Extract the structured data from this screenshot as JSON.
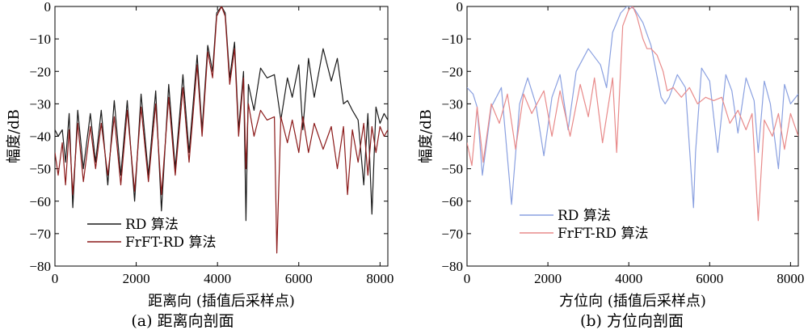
{
  "chart_data": [
    {
      "type": "line",
      "panel": "a",
      "caption": "(a) 距离向剖面",
      "xlabel": "距离向 (插值后采样点)",
      "ylabel": "幅度/dB",
      "xlim": [
        0,
        8192
      ],
      "ylim": [
        -80,
        0
      ],
      "xticks": [
        0,
        2000,
        4000,
        6000,
        8000
      ],
      "yticks": [
        0,
        -10,
        -20,
        -30,
        -40,
        -50,
        -60,
        -70,
        -80
      ],
      "legend_position": "bottom-left",
      "series": [
        {
          "name": "RD 算法",
          "color": "#1a1a1a",
          "x": [
            0,
            80,
            180,
            260,
            350,
            440,
            560,
            700,
            870,
            1000,
            1140,
            1300,
            1460,
            1620,
            1780,
            1960,
            2120,
            2300,
            2480,
            2620,
            2800,
            2960,
            3150,
            3300,
            3500,
            3620,
            3760,
            3880,
            3980,
            4100,
            4190,
            4300,
            4420,
            4520,
            4640,
            4700,
            4760,
            4900,
            5060,
            5220,
            5400,
            5560,
            5720,
            5840,
            6000,
            6100,
            6240,
            6380,
            6600,
            6800,
            6950,
            7100,
            7200,
            7320,
            7460,
            7600,
            7700,
            7800,
            7900,
            8000,
            8100,
            8192
          ],
          "values": [
            -38,
            -40,
            -38,
            -48,
            -33,
            -62,
            -32,
            -50,
            -33,
            -48,
            -32,
            -55,
            -29,
            -52,
            -29,
            -60,
            -27,
            -52,
            -26,
            -63,
            -24,
            -50,
            -21,
            -45,
            -15,
            -38,
            -12,
            -20,
            -2,
            0,
            -2,
            -22,
            -11,
            -38,
            -20,
            -66,
            -24,
            -32,
            -19,
            -22,
            -21,
            -35,
            -22,
            -28,
            -18,
            -38,
            -16,
            -28,
            -13,
            -23,
            -16,
            -30,
            -29,
            -32,
            -35,
            -55,
            -33,
            -64,
            -31,
            -36,
            -33,
            -35
          ]
        },
        {
          "name": "FrFT-RD 算法",
          "color": "#8b1a1a",
          "x": [
            0,
            80,
            180,
            260,
            350,
            440,
            560,
            700,
            870,
            1000,
            1140,
            1300,
            1460,
            1620,
            1780,
            1960,
            2120,
            2300,
            2480,
            2620,
            2800,
            2960,
            3150,
            3300,
            3500,
            3620,
            3760,
            3880,
            3980,
            4100,
            4190,
            4300,
            4420,
            4520,
            4640,
            4700,
            4760,
            4900,
            5060,
            5220,
            5400,
            5460,
            5560,
            5720,
            5840,
            6000,
            6100,
            6240,
            6380,
            6600,
            6800,
            6950,
            7100,
            7200,
            7320,
            7460,
            7600,
            7700,
            7800,
            7900,
            8000,
            8100,
            8192
          ],
          "values": [
            -45,
            -52,
            -42,
            -55,
            -38,
            -58,
            -36,
            -54,
            -37,
            -50,
            -36,
            -52,
            -34,
            -55,
            -32,
            -57,
            -31,
            -54,
            -30,
            -58,
            -28,
            -52,
            -25,
            -48,
            -18,
            -40,
            -14,
            -22,
            -3,
            0,
            -3,
            -24,
            -13,
            -40,
            -22,
            -50,
            -30,
            -40,
            -32,
            -35,
            -34,
            -76,
            -34,
            -42,
            -35,
            -45,
            -34,
            -45,
            -36,
            -44,
            -37,
            -50,
            -37,
            -58,
            -38,
            -48,
            -36,
            -52,
            -37,
            -45,
            -37,
            -40,
            -38
          ]
        }
      ]
    },
    {
      "type": "line",
      "panel": "b",
      "caption": "(b) 方位向剖面",
      "xlabel": "方位向 (插值后采样点)",
      "ylabel": "幅度/dB",
      "xlim": [
        0,
        8192
      ],
      "ylim": [
        -80,
        0
      ],
      "xticks": [
        0,
        2000,
        4000,
        6000,
        8000
      ],
      "yticks": [
        0,
        -10,
        -20,
        -30,
        -40,
        -50,
        -60,
        -70,
        -80
      ],
      "legend_position": "bottom-left",
      "series": [
        {
          "name": "RD 算法",
          "color": "#8aa0e0",
          "x": [
            0,
            150,
            250,
            380,
            600,
            850,
            1100,
            1300,
            1500,
            1700,
            1900,
            2100,
            2300,
            2500,
            2700,
            3000,
            3300,
            3450,
            3600,
            3800,
            3950,
            4050,
            4150,
            4350,
            4550,
            4800,
            4900,
            5000,
            5200,
            5400,
            5600,
            5650,
            5800,
            6000,
            6200,
            6400,
            6550,
            6700,
            6900,
            7100,
            7200,
            7350,
            7500,
            7700,
            7850,
            8000,
            8192
          ],
          "values": [
            -25,
            -27,
            -31,
            -52,
            -31,
            -25,
            -61,
            -30,
            -22,
            -30,
            -46,
            -28,
            -21,
            -38,
            -20,
            -13,
            -18,
            -25,
            -8,
            -2,
            0,
            0,
            -1,
            -5,
            -12,
            -28,
            -30,
            -28,
            -21,
            -25,
            -62,
            -45,
            -19,
            -23,
            -45,
            -21,
            -26,
            -39,
            -22,
            -29,
            -45,
            -23,
            -30,
            -50,
            -24,
            -30,
            -27
          ]
        },
        {
          "name": "FrFT-RD 算法",
          "color": "#e88a8a",
          "x": [
            0,
            120,
            250,
            400,
            600,
            800,
            1000,
            1200,
            1400,
            1600,
            1900,
            2100,
            2300,
            2550,
            2800,
            3000,
            3150,
            3350,
            3600,
            3700,
            3850,
            4000,
            4100,
            4200,
            4350,
            4450,
            4550,
            4700,
            4850,
            4950,
            5100,
            5300,
            5500,
            5700,
            5900,
            6100,
            6300,
            6500,
            6700,
            6900,
            7050,
            7200,
            7350,
            7550,
            7700,
            7850,
            8000,
            8192
          ],
          "values": [
            -42,
            -49,
            -31,
            -48,
            -30,
            -36,
            -27,
            -44,
            -27,
            -33,
            -26,
            -40,
            -26,
            -40,
            -24,
            -34,
            -22,
            -42,
            -22,
            -45,
            -6,
            -1,
            0,
            -3,
            -10,
            -13,
            -13,
            -15,
            -20,
            -26,
            -25,
            -28,
            -25,
            -30,
            -28,
            -29,
            -28,
            -36,
            -32,
            -38,
            -33,
            -66,
            -35,
            -40,
            -33,
            -44,
            -33,
            -40
          ]
        }
      ]
    }
  ]
}
